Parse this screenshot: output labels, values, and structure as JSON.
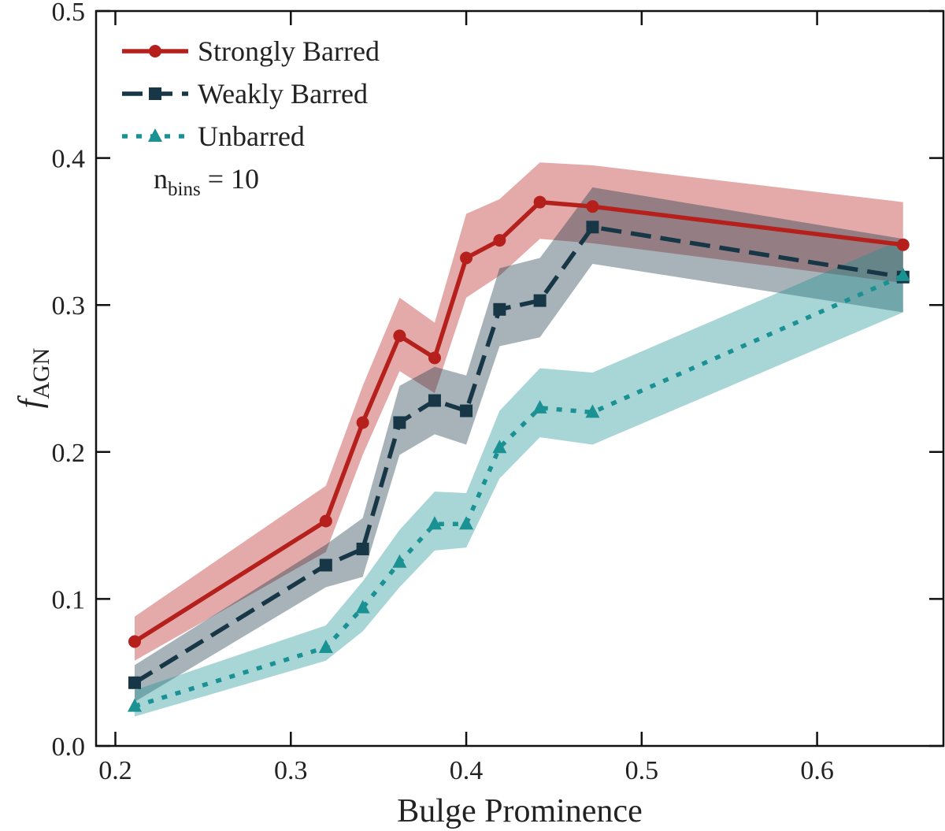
{
  "chart_data": {
    "type": "line",
    "x_label": "Bulge Prominence",
    "y_label": {
      "base": "f",
      "sub": "AGN"
    },
    "annotation": {
      "base": "n",
      "sub": "bins",
      "rest": " = 10"
    },
    "x": [
      0.211,
      0.32,
      0.341,
      0.362,
      0.382,
      0.4,
      0.419,
      0.442,
      0.472,
      0.649
    ],
    "series": [
      {
        "name": "Strongly Barred",
        "color": "#b5201c",
        "dash": "solid",
        "marker": "circle",
        "values": [
          0.071,
          0.153,
          0.22,
          0.279,
          0.264,
          0.332,
          0.344,
          0.37,
          0.367,
          0.341
        ],
        "upper": [
          0.088,
          0.177,
          0.245,
          0.305,
          0.288,
          0.362,
          0.372,
          0.397,
          0.395,
          0.37
        ],
        "lower": [
          0.058,
          0.132,
          0.198,
          0.255,
          0.24,
          0.305,
          0.32,
          0.345,
          0.342,
          0.315
        ]
      },
      {
        "name": "Weakly Barred",
        "color": "#173747",
        "dash": "dashed",
        "marker": "square",
        "values": [
          0.043,
          0.123,
          0.134,
          0.22,
          0.235,
          0.228,
          0.297,
          0.303,
          0.353,
          0.319
        ],
        "upper": [
          0.055,
          0.137,
          0.155,
          0.245,
          0.258,
          0.252,
          0.325,
          0.332,
          0.38,
          0.345
        ],
        "lower": [
          0.03,
          0.108,
          0.115,
          0.198,
          0.212,
          0.205,
          0.272,
          0.278,
          0.328,
          0.295
        ]
      },
      {
        "name": "Unbarred",
        "color": "#1a9193",
        "dash": "dotted",
        "marker": "triangle",
        "values": [
          0.027,
          0.067,
          0.094,
          0.125,
          0.151,
          0.151,
          0.203,
          0.23,
          0.227,
          0.32
        ],
        "upper": [
          0.038,
          0.082,
          0.112,
          0.147,
          0.173,
          0.172,
          0.228,
          0.257,
          0.254,
          0.345
        ],
        "lower": [
          0.02,
          0.058,
          0.078,
          0.108,
          0.133,
          0.135,
          0.182,
          0.21,
          0.205,
          0.295
        ]
      }
    ],
    "xlim": [
      0.189,
      0.672
    ],
    "ylim": [
      0,
      0.5
    ],
    "xticks": [
      0.2,
      0.3,
      0.4,
      0.5,
      0.6
    ],
    "yticks": [
      {
        "value": 0,
        "label": "0.0"
      },
      0.1,
      0.2,
      0.3,
      0.4,
      0.5
    ],
    "legend": "upper-left"
  }
}
